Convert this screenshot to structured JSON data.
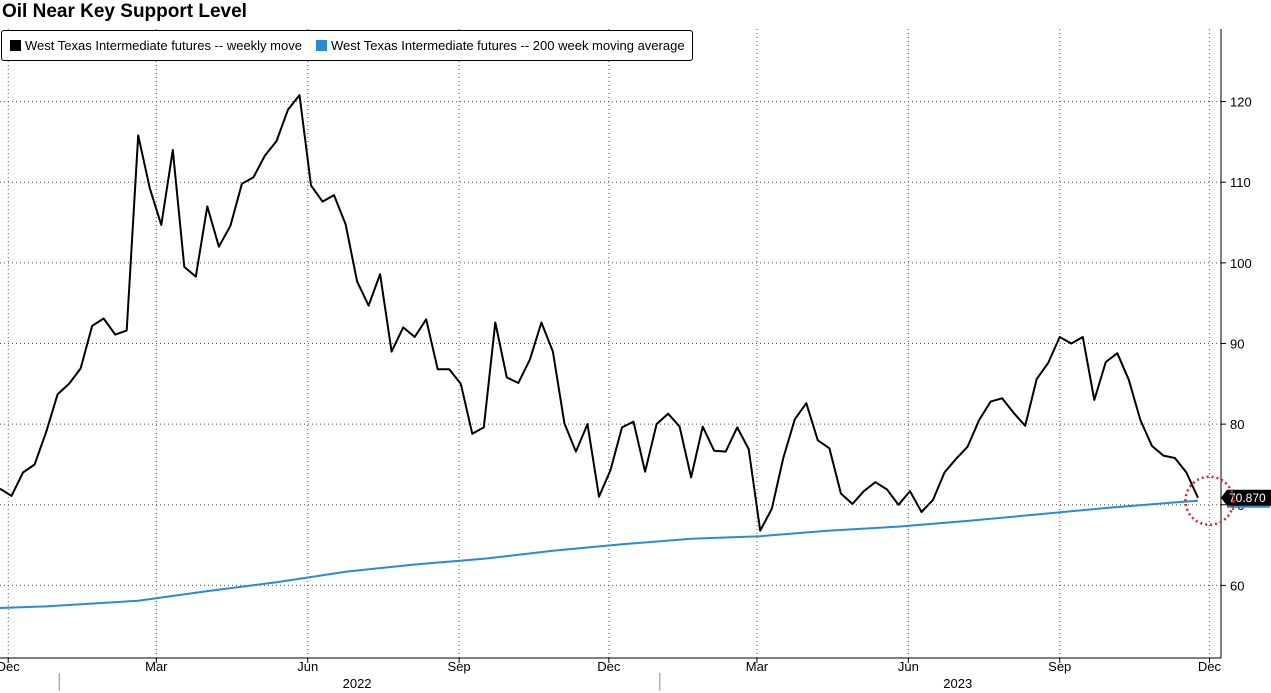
{
  "chart_data": {
    "type": "line",
    "title": "Oil Near Key Support Level",
    "ylim": [
      51,
      129
    ],
    "y_ticks": [
      60,
      70,
      80,
      90,
      100,
      110,
      120
    ],
    "grid": true,
    "legend_position": "top-left",
    "x_month_ticks": [
      {
        "label": "Dec",
        "date": "2021-12-01"
      },
      {
        "label": "Mar",
        "date": "2022-03-01"
      },
      {
        "label": "Jun",
        "date": "2022-06-01"
      },
      {
        "label": "Sep",
        "date": "2022-09-01"
      },
      {
        "label": "Dec",
        "date": "2022-12-01"
      },
      {
        "label": "Mar",
        "date": "2023-03-01"
      },
      {
        "label": "Jun",
        "date": "2023-06-01"
      },
      {
        "label": "Sep",
        "date": "2023-09-01"
      },
      {
        "label": "Dec",
        "date": "2023-12-01"
      }
    ],
    "x_year_labels": [
      {
        "label": "2022",
        "center": "2022-07-01"
      },
      {
        "label": "2023",
        "center": "2023-07-01"
      }
    ],
    "x_year_dividers": [
      "2022-01-01",
      "2023-01-01"
    ],
    "x_range": [
      "2021-11-26",
      "2023-12-08"
    ],
    "last_value_label": "70.870",
    "highlight_date": "2023-12-01",
    "highlight_value": 70.5,
    "series": [
      {
        "name": "West Texas Intermediate futures -- weekly move",
        "color": "#000000",
        "points": [
          [
            "2021-11-26",
            72.0
          ],
          [
            "2021-12-03",
            71.1
          ],
          [
            "2021-12-10",
            74.0
          ],
          [
            "2021-12-17",
            75.0
          ],
          [
            "2021-12-24",
            79.0
          ],
          [
            "2021-12-31",
            83.7
          ],
          [
            "2022-01-07",
            85.0
          ],
          [
            "2022-01-14",
            86.9
          ],
          [
            "2022-01-21",
            92.2
          ],
          [
            "2022-01-28",
            93.1
          ],
          [
            "2022-02-04",
            91.1
          ],
          [
            "2022-02-11",
            91.6
          ],
          [
            "2022-02-18",
            115.8
          ],
          [
            "2022-02-25",
            109.3
          ],
          [
            "2022-03-04",
            104.7
          ],
          [
            "2022-03-11",
            114.0
          ],
          [
            "2022-03-18",
            99.5
          ],
          [
            "2022-03-25",
            98.3
          ],
          [
            "2022-04-01",
            107.0
          ],
          [
            "2022-04-08",
            102.0
          ],
          [
            "2022-04-15",
            104.6
          ],
          [
            "2022-04-22",
            109.8
          ],
          [
            "2022-04-29",
            110.6
          ],
          [
            "2022-05-06",
            113.3
          ],
          [
            "2022-05-13",
            115.1
          ],
          [
            "2022-05-20",
            119.0
          ],
          [
            "2022-05-27",
            120.8
          ],
          [
            "2022-06-03",
            109.6
          ],
          [
            "2022-06-10",
            107.6
          ],
          [
            "2022-06-17",
            108.4
          ],
          [
            "2022-06-24",
            104.8
          ],
          [
            "2022-07-01",
            97.7
          ],
          [
            "2022-07-08",
            94.7
          ],
          [
            "2022-07-15",
            98.6
          ],
          [
            "2022-07-22",
            89.0
          ],
          [
            "2022-07-29",
            92.0
          ],
          [
            "2022-08-05",
            90.8
          ],
          [
            "2022-08-12",
            93.0
          ],
          [
            "2022-08-19",
            86.8
          ],
          [
            "2022-08-26",
            86.8
          ],
          [
            "2022-09-02",
            85.0
          ],
          [
            "2022-09-09",
            78.8
          ],
          [
            "2022-09-16",
            79.6
          ],
          [
            "2022-09-23",
            92.6
          ],
          [
            "2022-09-30",
            85.8
          ],
          [
            "2022-10-07",
            85.1
          ],
          [
            "2022-10-14",
            88.0
          ],
          [
            "2022-10-21",
            92.6
          ],
          [
            "2022-10-28",
            89.0
          ],
          [
            "2022-11-04",
            80.1
          ],
          [
            "2022-11-11",
            76.6
          ],
          [
            "2022-11-18",
            80.0
          ],
          [
            "2022-11-25",
            71.0
          ],
          [
            "2022-12-02",
            74.3
          ],
          [
            "2022-12-09",
            79.6
          ],
          [
            "2022-12-16",
            80.3
          ],
          [
            "2022-12-23",
            74.1
          ],
          [
            "2022-12-30",
            80.0
          ],
          [
            "2023-01-06",
            81.3
          ],
          [
            "2023-01-13",
            79.7
          ],
          [
            "2023-01-20",
            73.4
          ],
          [
            "2023-01-27",
            79.7
          ],
          [
            "2023-02-03",
            76.7
          ],
          [
            "2023-02-10",
            76.6
          ],
          [
            "2023-02-17",
            79.6
          ],
          [
            "2023-02-24",
            76.9
          ],
          [
            "2023-03-03",
            66.8
          ],
          [
            "2023-03-10",
            69.5
          ],
          [
            "2023-03-17",
            75.8
          ],
          [
            "2023-03-24",
            80.6
          ],
          [
            "2023-03-31",
            82.6
          ],
          [
            "2023-04-07",
            78.0
          ],
          [
            "2023-04-14",
            77.0
          ],
          [
            "2023-04-21",
            71.4
          ],
          [
            "2023-04-28",
            70.1
          ],
          [
            "2023-05-05",
            71.7
          ],
          [
            "2023-05-12",
            72.8
          ],
          [
            "2023-05-19",
            71.9
          ],
          [
            "2023-05-26",
            70.0
          ],
          [
            "2023-06-02",
            71.7
          ],
          [
            "2023-06-09",
            69.1
          ],
          [
            "2023-06-16",
            70.6
          ],
          [
            "2023-06-23",
            74.0
          ],
          [
            "2023-06-30",
            75.7
          ],
          [
            "2023-07-07",
            77.2
          ],
          [
            "2023-07-14",
            80.5
          ],
          [
            "2023-07-21",
            82.8
          ],
          [
            "2023-07-28",
            83.2
          ],
          [
            "2023-08-04",
            81.4
          ],
          [
            "2023-08-11",
            79.8
          ],
          [
            "2023-08-18",
            85.6
          ],
          [
            "2023-08-25",
            87.6
          ],
          [
            "2023-09-01",
            90.8
          ],
          [
            "2023-09-08",
            90.0
          ],
          [
            "2023-09-15",
            90.8
          ],
          [
            "2023-09-22",
            83.0
          ],
          [
            "2023-09-29",
            87.7
          ],
          [
            "2023-10-06",
            88.8
          ],
          [
            "2023-10-13",
            85.5
          ],
          [
            "2023-10-20",
            80.5
          ],
          [
            "2023-10-27",
            77.3
          ],
          [
            "2023-11-03",
            76.1
          ],
          [
            "2023-11-10",
            75.8
          ],
          [
            "2023-11-17",
            74.0
          ],
          [
            "2023-11-24",
            70.87
          ]
        ]
      },
      {
        "name": "West Texas Intermediate futures -- 200 week moving average",
        "color": "#2b8ad8",
        "points": [
          [
            "2021-11-26",
            57.2
          ],
          [
            "2021-12-24",
            57.4
          ],
          [
            "2022-02-18",
            58.1
          ],
          [
            "2022-04-01",
            59.3
          ],
          [
            "2022-05-13",
            60.4
          ],
          [
            "2022-06-24",
            61.7
          ],
          [
            "2022-08-05",
            62.6
          ],
          [
            "2022-09-16",
            63.3
          ],
          [
            "2022-10-28",
            64.3
          ],
          [
            "2022-12-09",
            65.1
          ],
          [
            "2023-01-20",
            65.8
          ],
          [
            "2023-03-03",
            66.1
          ],
          [
            "2023-04-14",
            66.8
          ],
          [
            "2023-05-26",
            67.3
          ],
          [
            "2023-07-07",
            68.0
          ],
          [
            "2023-08-18",
            68.8
          ],
          [
            "2023-09-29",
            69.6
          ],
          [
            "2023-11-10",
            70.3
          ],
          [
            "2023-11-24",
            70.5
          ]
        ]
      }
    ]
  }
}
